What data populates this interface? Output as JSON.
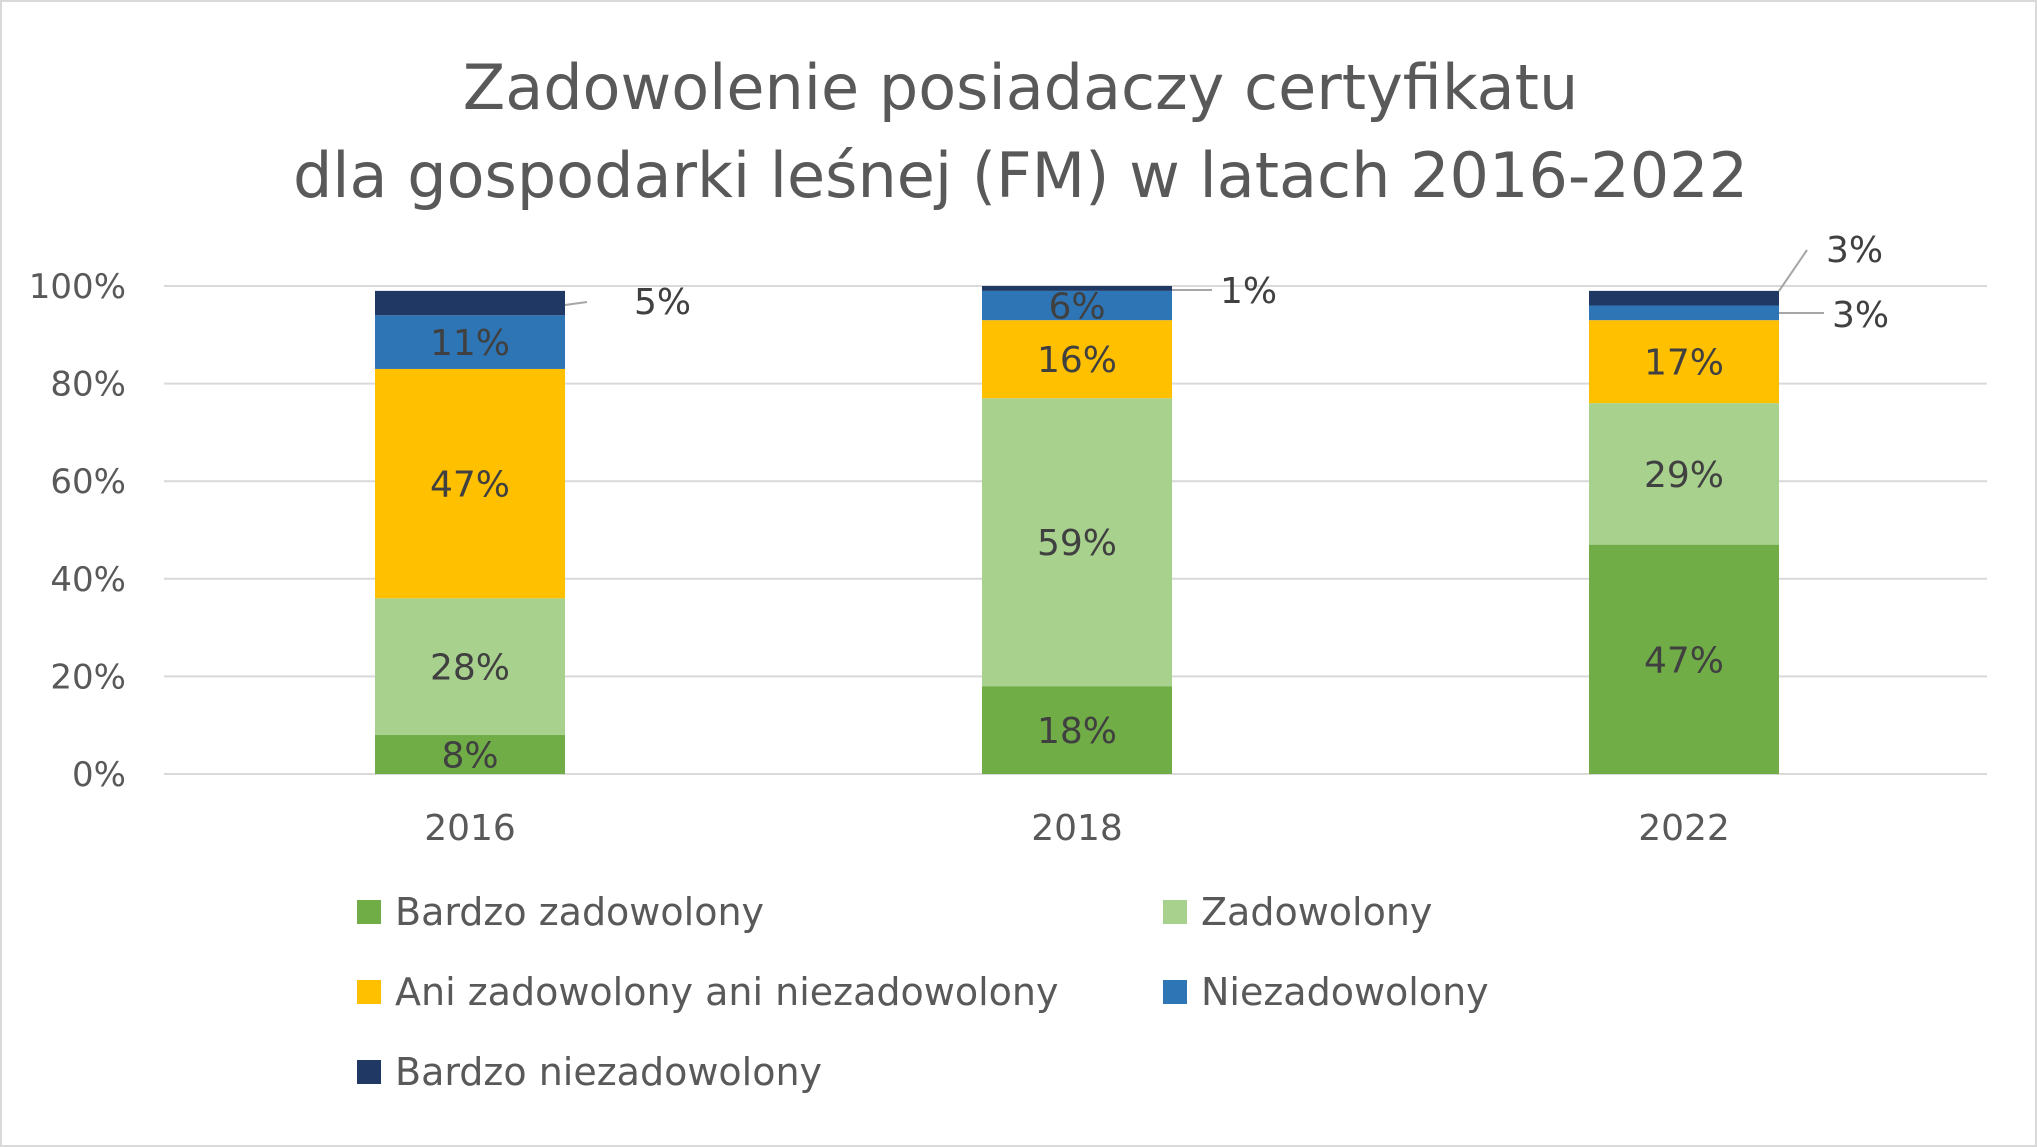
{
  "chart_data": {
    "type": "bar",
    "stacked": true,
    "title": [
      "Zadowolenie posiadaczy certyfikatu",
      "dla gospodarki leśnej (FM) w latach 2016-2022"
    ],
    "categories": [
      "2016",
      "2018",
      "2022"
    ],
    "y_ticks": [
      "0%",
      "20%",
      "40%",
      "60%",
      "80%",
      "100%"
    ],
    "ylim": [
      0,
      100
    ],
    "grid": true,
    "legend_position": "bottom",
    "series": [
      {
        "name": "Bardzo zadowolony",
        "color": "#70ad47",
        "values": [
          8,
          18,
          47
        ],
        "labels": [
          "8%",
          "18%",
          "47%"
        ]
      },
      {
        "name": "Zadowolony",
        "color": "#a9d18e",
        "values": [
          28,
          59,
          29
        ],
        "labels": [
          "28%",
          "59%",
          "29%"
        ]
      },
      {
        "name": "Ani zadowolony ani niezadowolony",
        "color": "#ffc000",
        "values": [
          47,
          16,
          17
        ],
        "labels": [
          "47%",
          "16%",
          "17%"
        ]
      },
      {
        "name": "Niezadowolony",
        "color": "#2e75b6",
        "values": [
          11,
          6,
          3
        ],
        "labels": [
          "11%",
          "6%",
          "3%"
        ]
      },
      {
        "name": "Bardzo niezadowolony",
        "color": "#203864",
        "values": [
          5,
          1,
          3
        ],
        "labels": [
          "5%",
          "1%",
          "3%"
        ]
      }
    ]
  }
}
